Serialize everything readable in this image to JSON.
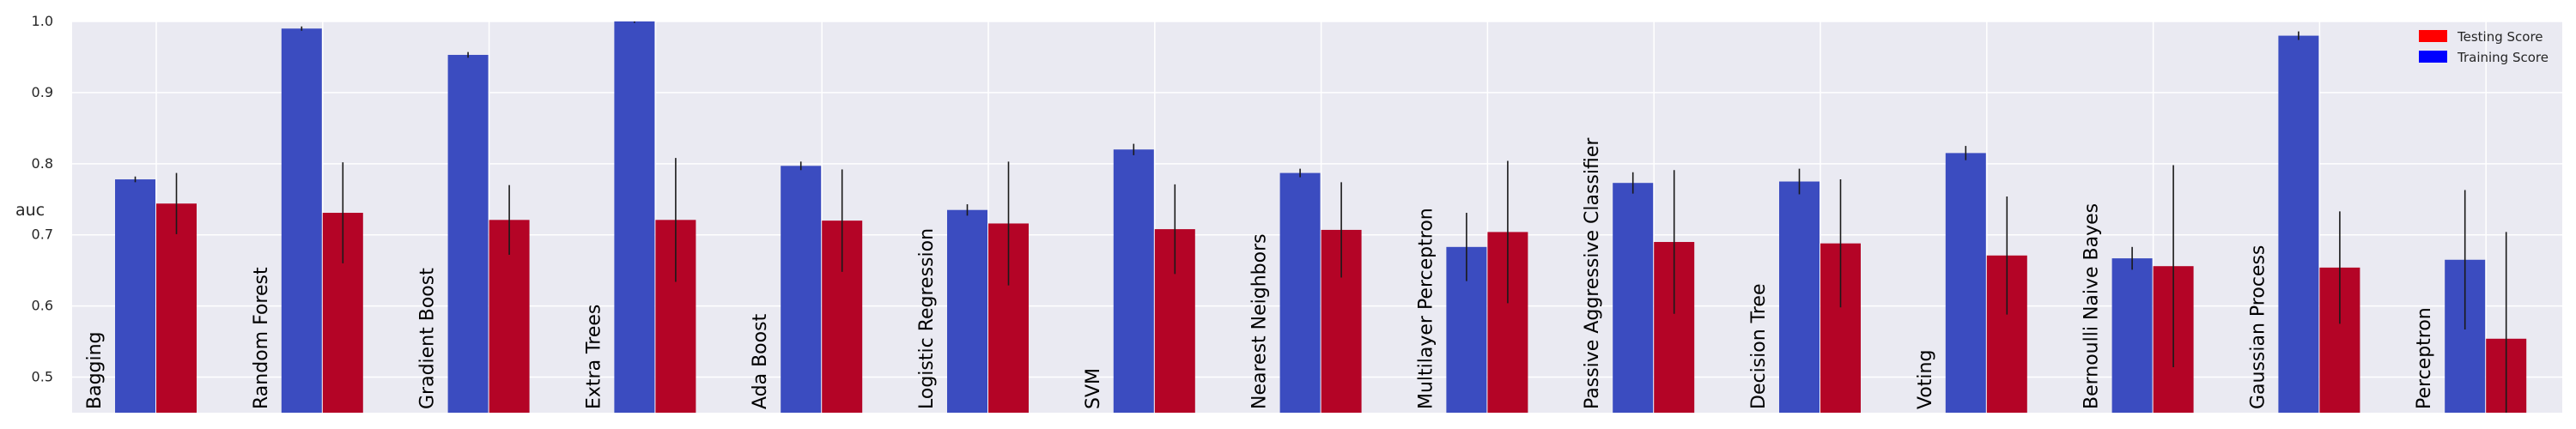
{
  "chart_data": {
    "type": "bar",
    "ylabel": "auc",
    "ylim": [
      0.45,
      1.0
    ],
    "yticks": [
      "0.5",
      "0.6",
      "0.7",
      "0.8",
      "0.9",
      "1.0"
    ],
    "grid": true,
    "legend_position": "top-right",
    "categories": [
      "Bagging",
      "Random Forest",
      "Gradient Boost",
      "Extra Trees",
      "Ada Boost",
      "Logistic Regression",
      "SVM",
      "Nearest Neighbors",
      "Multilayer Perceptron",
      "Passive Aggressive Classifier",
      "Decision Tree",
      "Voting",
      "Bernoulli Naive Bayes",
      "Gaussian Process",
      "Perceptron"
    ],
    "series": [
      {
        "name": "Training Score",
        "color": "#3b4cc0",
        "values": [
          0.778,
          0.99,
          0.953,
          1.0,
          0.797,
          0.735,
          0.82,
          0.787,
          0.683,
          0.773,
          0.775,
          0.815,
          0.667,
          0.98,
          0.665
        ],
        "errors": [
          0.004,
          0.003,
          0.004,
          0.002,
          0.006,
          0.008,
          0.008,
          0.006,
          0.048,
          0.015,
          0.018,
          0.01,
          0.016,
          0.006,
          0.098
        ]
      },
      {
        "name": "Testing Score",
        "color": "#b40426",
        "values": [
          0.744,
          0.731,
          0.721,
          0.721,
          0.72,
          0.716,
          0.708,
          0.707,
          0.704,
          0.69,
          0.688,
          0.671,
          0.656,
          0.654,
          0.554
        ],
        "errors": [
          0.043,
          0.071,
          0.049,
          0.087,
          0.072,
          0.087,
          0.063,
          0.067,
          0.1,
          0.101,
          0.09,
          0.083,
          0.142,
          0.079,
          0.15
        ]
      }
    ]
  }
}
